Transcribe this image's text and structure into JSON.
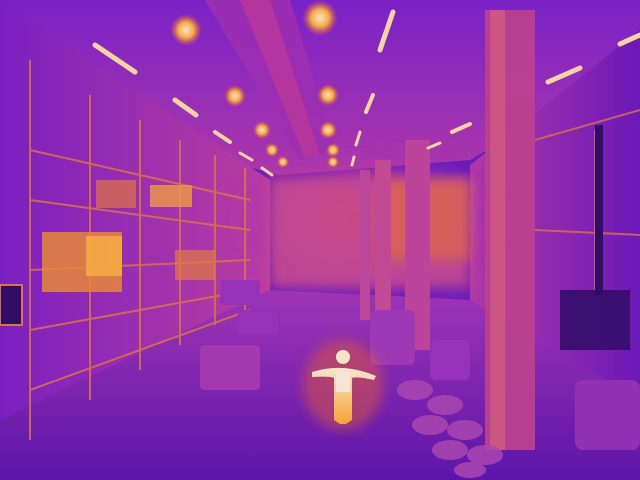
{
  "scene": {
    "kind": "thermal-infrared-photo",
    "palette": "ironbow",
    "subject": "warehouse-interior",
    "colors": {
      "cold": "#3a0a8a",
      "cool": "#7a1fc0",
      "mid": "#c03aa8",
      "warm": "#e8602e",
      "hot": "#ffb43a",
      "hottest": "#fff4c8"
    }
  }
}
